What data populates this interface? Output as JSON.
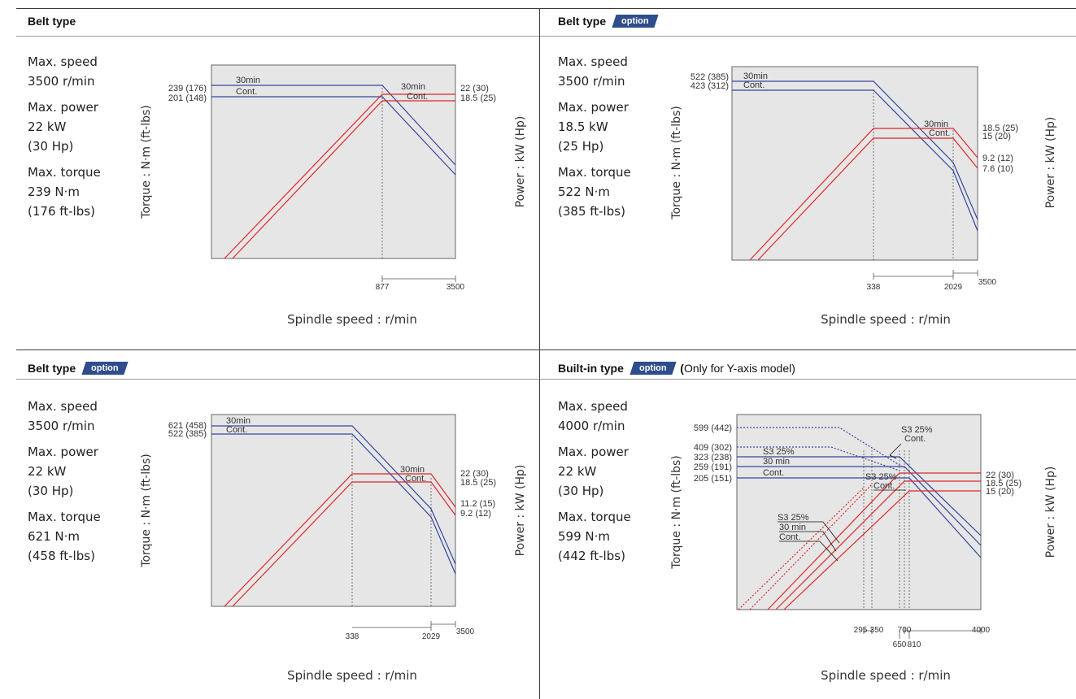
{
  "badge_label": "option",
  "quadrants": [
    {
      "heading": "Belt type",
      "has_badge": false,
      "note_pre": "",
      "note_bold": "",
      "note_post": "",
      "specs": [
        {
          "label": "Max. speed",
          "lines": [
            "3500 r/min"
          ]
        },
        {
          "label": "Max. power",
          "lines": [
            "22 kW",
            "(30 Hp)"
          ]
        },
        {
          "label": "Max. torque",
          "lines": [
            "239 N·m",
            "(176 ft-lbs)"
          ]
        }
      ],
      "chart_data": {
        "type": "line",
        "xlabel": "Spindle speed : r/min",
        "ylabel_left": "Torque : N·m (ft-lbs)",
        "ylabel_right": "Power : kW (Hp)",
        "x_ticks": [
          "877",
          "3500"
        ],
        "torque_labels": [
          "239 (176)",
          "201 (148)"
        ],
        "power_labels": [
          "22 (30)",
          "18.5 (25)"
        ],
        "series": [
          {
            "name": "30min",
            "color": "#3346a0",
            "quantity": "torque",
            "points": [
              [
                0,
                239
              ],
              [
                877,
                239
              ],
              [
                3500,
                170
              ]
            ]
          },
          {
            "name": "Cont.",
            "color": "#3346a0",
            "quantity": "torque",
            "points": [
              [
                0,
                201
              ],
              [
                877,
                201
              ],
              [
                3500,
                155
              ]
            ]
          },
          {
            "name": "30min",
            "color": "#e0262b",
            "quantity": "power",
            "points": [
              [
                0,
                0
              ],
              [
                877,
                22
              ],
              [
                3500,
                22
              ]
            ]
          },
          {
            "name": "Cont.",
            "color": "#e0262b",
            "quantity": "power",
            "points": [
              [
                0,
                0
              ],
              [
                877,
                18.5
              ],
              [
                3500,
                18.5
              ]
            ]
          }
        ],
        "curve_labels_torque": [
          "30min",
          "Cont."
        ],
        "curve_labels_power": [
          "30min",
          "Cont."
        ]
      }
    },
    {
      "heading": "Belt type",
      "has_badge": true,
      "note_pre": "",
      "note_bold": "",
      "note_post": "",
      "specs": [
        {
          "label": "Max. speed",
          "lines": [
            "3500 r/min"
          ]
        },
        {
          "label": "Max. power",
          "lines": [
            "18.5 kW",
            "(25 Hp)"
          ]
        },
        {
          "label": "Max. torque",
          "lines": [
            "522 N·m",
            "(385 ft-lbs)"
          ]
        }
      ],
      "chart_data": {
        "type": "line",
        "xlabel": "Spindle speed : r/min",
        "ylabel_left": "Torque : N·m (ft-lbs)",
        "ylabel_right": "Power : kW (Hp)",
        "x_ticks": [
          "338",
          "2029",
          "3500"
        ],
        "torque_labels": [
          "522 (385)",
          "423 (312)"
        ],
        "power_labels": [
          "18.5 (25)",
          "15 (20)",
          "9.2 (12)",
          "7.6 (10)"
        ],
        "series": [
          {
            "name": "30min",
            "color": "#3346a0",
            "quantity": "torque",
            "points": [
              [
                0,
                522
              ],
              [
                338,
                522
              ],
              [
                2029,
                300
              ],
              [
                3500,
                180
              ]
            ]
          },
          {
            "name": "Cont.",
            "color": "#3346a0",
            "quantity": "torque",
            "points": [
              [
                0,
                423
              ],
              [
                338,
                423
              ],
              [
                2029,
                270
              ],
              [
                3500,
                160
              ]
            ]
          },
          {
            "name": "30min",
            "color": "#e0262b",
            "quantity": "power",
            "points": [
              [
                0,
                0
              ],
              [
                338,
                18.5
              ],
              [
                2029,
                18.5
              ],
              [
                3500,
                9.2
              ]
            ]
          },
          {
            "name": "Cont.",
            "color": "#e0262b",
            "quantity": "power",
            "points": [
              [
                0,
                0
              ],
              [
                338,
                15
              ],
              [
                2029,
                15
              ],
              [
                3500,
                7.6
              ]
            ]
          }
        ],
        "curve_labels_torque": [
          "30min",
          "Cont."
        ],
        "curve_labels_power": [
          "30min",
          "Cont."
        ]
      }
    },
    {
      "heading": "Belt type",
      "has_badge": true,
      "note_pre": "",
      "note_bold": "",
      "note_post": "",
      "specs": [
        {
          "label": "Max. speed",
          "lines": [
            "3500 r/min"
          ]
        },
        {
          "label": "Max. power",
          "lines": [
            "22 kW",
            "(30 Hp)"
          ]
        },
        {
          "label": "Max. torque",
          "lines": [
            "621 N·m",
            "(458 ft-lbs)"
          ]
        }
      ],
      "chart_data": {
        "type": "line",
        "xlabel": "Spindle speed : r/min",
        "ylabel_left": "Torque : N·m (ft-lbs)",
        "ylabel_right": "Power : kW (Hp)",
        "x_ticks": [
          "338",
          "2029",
          "3500"
        ],
        "torque_labels": [
          "621 (458)",
          "522 (385)"
        ],
        "power_labels": [
          "22 (30)",
          "18.5 (25)",
          "11.2 (15)",
          "9.2 (12)"
        ],
        "series": [
          {
            "name": "30min",
            "color": "#3346a0",
            "quantity": "torque",
            "points": [
              [
                0,
                621
              ],
              [
                338,
                621
              ],
              [
                2029,
                350
              ],
              [
                3500,
                200
              ]
            ]
          },
          {
            "name": "Cont.",
            "color": "#3346a0",
            "quantity": "torque",
            "points": [
              [
                0,
                522
              ],
              [
                338,
                522
              ],
              [
                2029,
                320
              ],
              [
                3500,
                180
              ]
            ]
          },
          {
            "name": "30min",
            "color": "#e0262b",
            "quantity": "power",
            "points": [
              [
                0,
                0
              ],
              [
                338,
                22
              ],
              [
                2029,
                22
              ],
              [
                3500,
                11.2
              ]
            ]
          },
          {
            "name": "Cont.",
            "color": "#e0262b",
            "quantity": "power",
            "points": [
              [
                0,
                0
              ],
              [
                338,
                18.5
              ],
              [
                2029,
                18.5
              ],
              [
                3500,
                9.2
              ]
            ]
          }
        ],
        "curve_labels_torque": [
          "30min",
          "Cont."
        ],
        "curve_labels_power": [
          "30min",
          "Cont."
        ]
      }
    },
    {
      "heading": "Built-in type",
      "has_badge": true,
      "note_pre": "(",
      "note_bold": "",
      "note_post": "Only for Y-axis model)",
      "specs": [
        {
          "label": "Max. speed",
          "lines": [
            "4000 r/min"
          ]
        },
        {
          "label": "Max. power",
          "lines": [
            "22 kW",
            "(30 Hp)"
          ]
        },
        {
          "label": "Max. torque",
          "lines": [
            "599 N·m",
            "(442 ft-lbs)"
          ]
        }
      ],
      "chart_data": {
        "type": "line",
        "xlabel": "Spindle speed : r/min",
        "ylabel_left": "Torque : N·m (ft-lbs)",
        "ylabel_right": "Power : kW (Hp)",
        "x_ticks_top": [
          "295",
          "350",
          "700",
          "4000"
        ],
        "x_ticks_bottom": [
          "650",
          "810"
        ],
        "torque_labels": [
          "599 (442)",
          "409 (302)",
          "323 (238)",
          "259 (191)",
          "205 (151)"
        ],
        "power_labels": [
          "22 (30)",
          "18.5 (25)",
          "15 (20)"
        ],
        "series": [
          {
            "name": "S3 25%",
            "color": "#3346a0",
            "quantity": "torque",
            "dotted": true,
            "points": [
              [
                0,
                599
              ],
              [
                295,
                599
              ],
              [
                700,
                420
              ],
              [
                4000,
                150
              ]
            ]
          },
          {
            "name": "S3 25%",
            "color": "#3346a0",
            "quantity": "torque",
            "points": [
              [
                0,
                323
              ],
              [
                650,
                323
              ],
              [
                4000,
                140
              ]
            ]
          },
          {
            "name": "30 min",
            "color": "#3346a0",
            "quantity": "torque",
            "points": [
              [
                0,
                259
              ],
              [
                700,
                259
              ],
              [
                4000,
                120
              ]
            ]
          },
          {
            "name": "Cont.",
            "color": "#3346a0",
            "quantity": "torque",
            "points": [
              [
                0,
                205
              ],
              [
                810,
                205
              ],
              [
                4000,
                100
              ]
            ]
          },
          {
            "name": "S3 25%",
            "color": "#e0262b",
            "quantity": "power",
            "dotted": true,
            "points": [
              [
                0,
                0
              ],
              [
                295,
                18.5
              ]
            ]
          },
          {
            "name": "S3 25%",
            "color": "#e0262b",
            "quantity": "power",
            "points": [
              [
                0,
                0
              ],
              [
                650,
                22
              ],
              [
                4000,
                22
              ]
            ]
          },
          {
            "name": "30 min",
            "color": "#e0262b",
            "quantity": "power",
            "points": [
              [
                0,
                0
              ],
              [
                700,
                18.5
              ],
              [
                4000,
                18.5
              ]
            ]
          },
          {
            "name": "Cont.",
            "color": "#e0262b",
            "quantity": "power",
            "points": [
              [
                0,
                0
              ],
              [
                810,
                15
              ],
              [
                4000,
                15
              ]
            ]
          }
        ],
        "curve_labels_torque": [
          "S3 25%",
          "Cont.",
          "S3 25%",
          "30 min",
          "Cont."
        ],
        "curve_labels_power": [
          "S3 25%",
          "Cont."
        ],
        "curve_labels_left": [
          "S3 25%",
          "30 min",
          "Cont."
        ]
      }
    }
  ]
}
